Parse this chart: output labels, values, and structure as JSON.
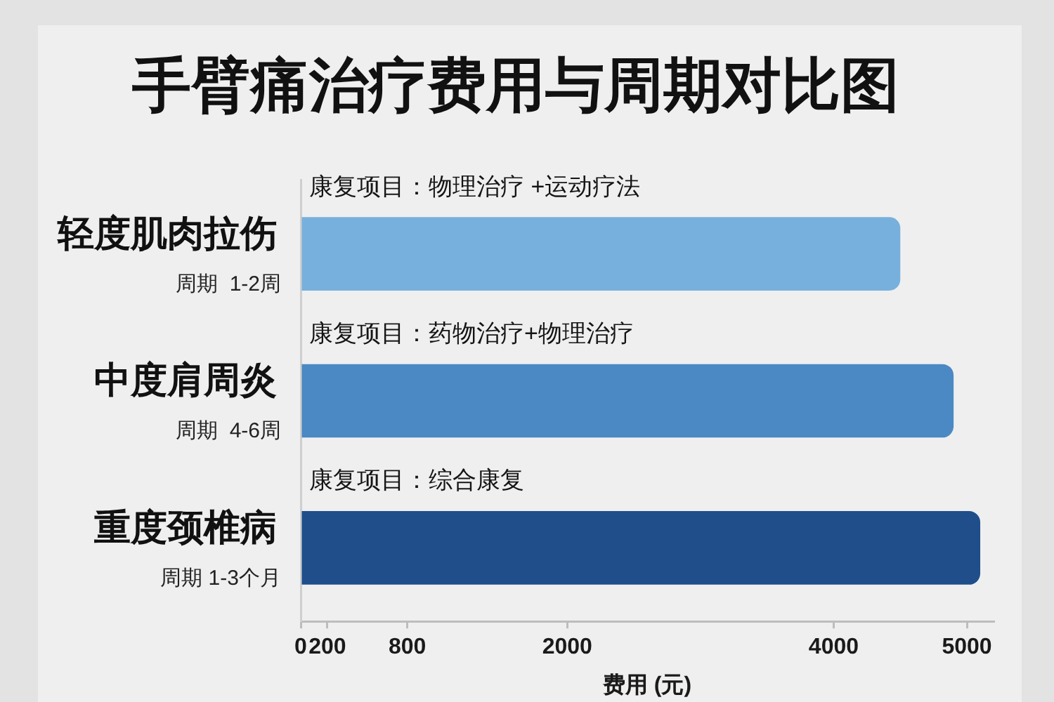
{
  "chart_data": {
    "type": "bar",
    "orientation": "horizontal",
    "title": "手臂痛治疗费用与周期对比图",
    "categories": [
      "轻度肌肉拉伤",
      "中度肩周炎",
      "重度颈椎病"
    ],
    "values": [
      4500,
      4900,
      5100
    ],
    "colors": [
      "#77b0dc",
      "#4a89c3",
      "#1f4e8b"
    ],
    "xlim": [
      0,
      5200
    ],
    "xticks": [
      0,
      200,
      800,
      2000,
      4000,
      5000
    ],
    "xlabel": "费用 (元)",
    "annotations": [
      "康复项目：物理治疗 +运动疗法",
      "周期  1-2周",
      "康复项目：药物治疗+物理治疗",
      "周期  4-6周",
      "康复项目：综合康复",
      "周期 1-3个月"
    ]
  }
}
